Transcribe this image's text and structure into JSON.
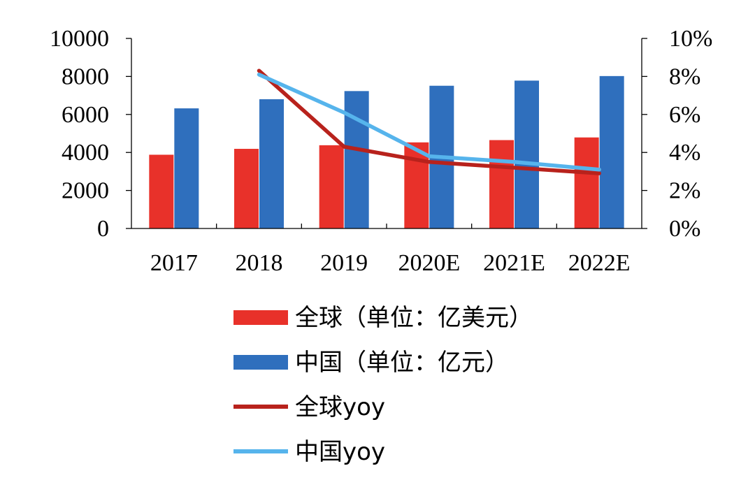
{
  "chart_data": {
    "type": "bar",
    "categories": [
      "2017",
      "2018",
      "2019",
      "2020E",
      "2021E",
      "2022E"
    ],
    "series": [
      {
        "name": "全球（单位：亿美元）",
        "kind": "bar",
        "axis": "left",
        "color": "#e8312a",
        "values": [
          3880,
          4190,
          4380,
          4530,
          4650,
          4790
        ]
      },
      {
        "name": "中国（单位：亿元）",
        "kind": "bar",
        "axis": "left",
        "color": "#2f6fbd",
        "values": [
          6320,
          6800,
          7230,
          7510,
          7780,
          8020
        ]
      },
      {
        "name": "全球yoy",
        "kind": "line",
        "axis": "right",
        "color": "#b8221c",
        "values": [
          null,
          0.083,
          0.043,
          0.035,
          0.032,
          0.029
        ]
      },
      {
        "name": "中国yoy",
        "kind": "line",
        "axis": "right",
        "color": "#56b4ec",
        "values": [
          null,
          0.081,
          0.061,
          0.038,
          0.035,
          0.031
        ]
      }
    ],
    "y_left": {
      "min": 0,
      "max": 10000,
      "ticks": [
        "0",
        "2000",
        "4000",
        "6000",
        "8000",
        "10000"
      ]
    },
    "y_right": {
      "min": 0,
      "max": 0.1,
      "ticks": [
        "0%",
        "2%",
        "4%",
        "6%",
        "8%",
        "10%"
      ]
    },
    "legend_position": "bottom",
    "grid": false
  }
}
